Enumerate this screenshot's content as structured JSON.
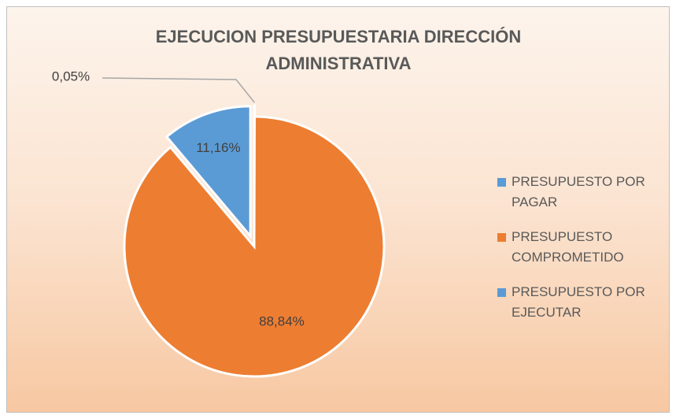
{
  "chart_data": {
    "type": "pie",
    "title": "EJECUCION PRESUPUESTARIA DIRECCIÓN ADMINISTRATIVA",
    "categories": [
      "PRESUPUESTO POR PAGAR",
      "PRESUPUESTO COMPROMETIDO",
      "PRESUPUESTO POR EJECUTAR"
    ],
    "values": [
      0.05,
      88.84,
      11.16
    ],
    "value_labels": [
      "0,05%",
      "88,84%",
      "11,16%"
    ],
    "colors": [
      "#5b9bd5",
      "#ed7d31",
      "#5b9bd5"
    ],
    "legend": "right"
  }
}
